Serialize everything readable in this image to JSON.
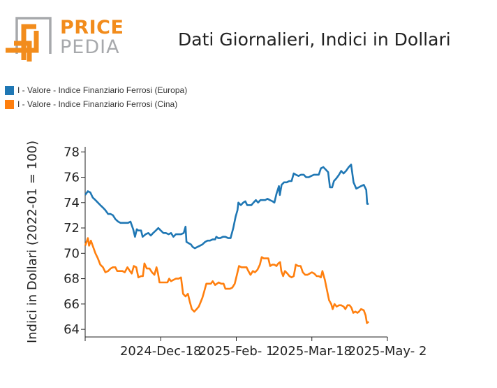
{
  "brand": {
    "line1": "PRICE",
    "line2": "PEDIA",
    "orange": "#f28c1c",
    "gray": "#a7a9ac"
  },
  "chart_data": {
    "type": "line",
    "title": "Dati Giornalieri, Indici in Dollari",
    "xlabel": "",
    "ylabel": "Indici in Dollari (2022-01 = 100)",
    "ylim": [
      63.4,
      78.4
    ],
    "yticks": [
      64,
      66,
      68,
      70,
      72,
      74,
      76,
      78
    ],
    "xlim": [
      0,
      100
    ],
    "xticks": [
      {
        "x": 25,
        "label": "2024-Dec-18"
      },
      {
        "x": 50,
        "label": "2025-Feb- 1"
      },
      {
        "x": 75,
        "label": "2025-Mar-18"
      },
      {
        "x": 100,
        "label": "2025-May- 2"
      }
    ],
    "legend_position": "top-left",
    "series": [
      {
        "name": "I - Valore - Indice Finanziario Ferrosi (Europa)",
        "color": "#1f77b4",
        "points": [
          [
            0,
            74.6
          ],
          [
            0.9,
            74.9
          ],
          [
            1.7,
            74.8
          ],
          [
            2.5,
            74.4
          ],
          [
            3.4,
            74.2
          ],
          [
            4.2,
            74
          ],
          [
            5,
            73.8
          ],
          [
            5.9,
            73.6
          ],
          [
            6.7,
            73.4
          ],
          [
            7.6,
            73.1
          ],
          [
            8.4,
            73.1
          ],
          [
            9.2,
            73
          ],
          [
            10,
            72.7
          ],
          [
            10.9,
            72.5
          ],
          [
            11.7,
            72.4
          ],
          [
            12.6,
            72.4
          ],
          [
            13.4,
            72.4
          ],
          [
            14.2,
            72.4
          ],
          [
            15,
            72.5
          ],
          [
            15.9,
            71.9
          ],
          [
            16.5,
            71.3
          ],
          [
            17.1,
            71.9
          ],
          [
            17.6,
            71.8
          ],
          [
            18.5,
            71.8
          ],
          [
            19,
            71.3
          ],
          [
            20,
            71.5
          ],
          [
            20.9,
            71.6
          ],
          [
            21.7,
            71.4
          ],
          [
            22.5,
            71.6
          ],
          [
            23.4,
            71.8
          ],
          [
            24.2,
            72
          ],
          [
            25,
            71.8
          ],
          [
            25.9,
            71.6
          ],
          [
            26.7,
            71.6
          ],
          [
            27.6,
            71.5
          ],
          [
            28.4,
            71.6
          ],
          [
            29.2,
            71.3
          ],
          [
            30,
            71.5
          ],
          [
            30.9,
            71.5
          ],
          [
            31.7,
            71.5
          ],
          [
            32.6,
            71.6
          ],
          [
            33.2,
            72.1
          ],
          [
            33.5,
            70.9
          ],
          [
            34.2,
            70.8
          ],
          [
            35,
            70.7
          ],
          [
            35.6,
            70.5
          ],
          [
            36.3,
            70.4
          ],
          [
            37.1,
            70.5
          ],
          [
            38,
            70.6
          ],
          [
            38.8,
            70.7
          ],
          [
            39.7,
            70.9
          ],
          [
            40.5,
            71
          ],
          [
            41.3,
            71
          ],
          [
            42.2,
            71.1
          ],
          [
            43,
            71.1
          ],
          [
            43.4,
            71.3
          ],
          [
            44,
            71.2
          ],
          [
            44.7,
            71.2
          ],
          [
            45.6,
            71.3
          ],
          [
            46.4,
            71.3
          ],
          [
            47.3,
            71.2
          ],
          [
            48.1,
            71.2
          ],
          [
            49,
            72
          ],
          [
            49.8,
            72.9
          ],
          [
            50.4,
            73.4
          ],
          [
            50.7,
            74
          ],
          [
            51.5,
            73.8
          ],
          [
            52.3,
            74
          ],
          [
            53,
            74.1
          ],
          [
            53.6,
            73.8
          ],
          [
            54.3,
            73.8
          ],
          [
            55,
            73.8
          ],
          [
            55.7,
            74
          ],
          [
            56.5,
            74.2
          ],
          [
            57.2,
            74
          ],
          [
            58,
            74.2
          ],
          [
            58.7,
            74.2
          ],
          [
            59.6,
            74.2
          ],
          [
            60.3,
            74.3
          ],
          [
            61.1,
            74.2
          ],
          [
            62,
            74.1
          ],
          [
            62.6,
            74
          ],
          [
            63.3,
            74.7
          ],
          [
            64.1,
            75.3
          ],
          [
            64.4,
            74.6
          ],
          [
            65,
            75.4
          ],
          [
            65.8,
            75.6
          ],
          [
            66.7,
            75.6
          ],
          [
            67.5,
            75.7
          ],
          [
            68.3,
            75.7
          ],
          [
            69,
            76.3
          ],
          [
            69.7,
            76.2
          ],
          [
            70.6,
            76.1
          ],
          [
            71.4,
            76.2
          ],
          [
            72.3,
            76.2
          ],
          [
            73.1,
            76
          ],
          [
            74,
            76
          ],
          [
            74.8,
            76.1
          ],
          [
            75.7,
            76.2
          ],
          [
            76.5,
            76.2
          ],
          [
            77.3,
            76.2
          ],
          [
            78,
            76.7
          ],
          [
            78.8,
            76.8
          ],
          [
            79.6,
            76.6
          ],
          [
            80.4,
            76.4
          ],
          [
            81,
            75.2
          ],
          [
            81.7,
            75.2
          ],
          [
            82.3,
            75.7
          ],
          [
            83.1,
            75.9
          ],
          [
            84,
            76.2
          ],
          [
            84.7,
            76.5
          ],
          [
            85.5,
            76.3
          ],
          [
            86.3,
            76.5
          ],
          [
            87.2,
            76.8
          ],
          [
            88,
            77
          ],
          [
            88.8,
            75.6
          ],
          [
            89.7,
            75.1
          ],
          [
            90.5,
            75.2
          ],
          [
            91.3,
            75.3
          ],
          [
            92.2,
            75.4
          ],
          [
            93,
            75
          ],
          [
            93.3,
            73.9
          ],
          [
            93.8,
            73.9
          ]
        ]
      },
      {
        "name": "I - Valore - Indice Finanziario Ferrosi (Cina)",
        "color": "#ff7f0e",
        "points": [
          [
            0,
            70.6
          ],
          [
            0.9,
            71.2
          ],
          [
            1.3,
            70.6
          ],
          [
            1.9,
            71
          ],
          [
            2.5,
            70.6
          ],
          [
            3.4,
            70
          ],
          [
            4.2,
            69.6
          ],
          [
            5,
            69.1
          ],
          [
            5.9,
            68.9
          ],
          [
            6.7,
            68.5
          ],
          [
            7.6,
            68.6
          ],
          [
            8.4,
            68.8
          ],
          [
            9.2,
            68.9
          ],
          [
            10,
            68.9
          ],
          [
            10.6,
            68.6
          ],
          [
            11.5,
            68.6
          ],
          [
            12.3,
            68.6
          ],
          [
            13.1,
            68.5
          ],
          [
            14,
            68.9
          ],
          [
            14.8,
            68.6
          ],
          [
            15.4,
            68.4
          ],
          [
            16.1,
            69
          ],
          [
            16.9,
            68.9
          ],
          [
            17.6,
            68.1
          ],
          [
            18.5,
            68.2
          ],
          [
            19.1,
            68.2
          ],
          [
            19.6,
            69.2
          ],
          [
            20.4,
            68.8
          ],
          [
            21.3,
            68.8
          ],
          [
            22.1,
            68.5
          ],
          [
            22.9,
            68.3
          ],
          [
            23.6,
            68.9
          ],
          [
            24.1,
            68.4
          ],
          [
            24.6,
            67.7
          ],
          [
            25.5,
            67.7
          ],
          [
            26.3,
            67.7
          ],
          [
            27.2,
            67.7
          ],
          [
            27.8,
            68
          ],
          [
            28.4,
            67.8
          ],
          [
            29.2,
            67.9
          ],
          [
            30,
            68
          ],
          [
            30.9,
            68
          ],
          [
            31.7,
            68.1
          ],
          [
            32.4,
            66.8
          ],
          [
            33.2,
            66.6
          ],
          [
            34,
            66.8
          ],
          [
            34.6,
            66.2
          ],
          [
            35.3,
            65.6
          ],
          [
            36.1,
            65.4
          ],
          [
            36.9,
            65.6
          ],
          [
            37.6,
            65.8
          ],
          [
            38.3,
            66.2
          ],
          [
            38.8,
            66.5
          ],
          [
            39.4,
            67
          ],
          [
            40.1,
            67.6
          ],
          [
            40.9,
            67.6
          ],
          [
            41.6,
            67.6
          ],
          [
            42.2,
            67.8
          ],
          [
            43,
            67.5
          ],
          [
            43.6,
            67.6
          ],
          [
            44.2,
            67.7
          ],
          [
            45,
            67.6
          ],
          [
            45.8,
            67.6
          ],
          [
            46.4,
            67.2
          ],
          [
            47.1,
            67.2
          ],
          [
            47.9,
            67.2
          ],
          [
            48.7,
            67.3
          ],
          [
            49.5,
            67.6
          ],
          [
            50.2,
            68.3
          ],
          [
            50.9,
            69
          ],
          [
            51.7,
            68.9
          ],
          [
            52.6,
            68.9
          ],
          [
            53.4,
            68.9
          ],
          [
            54,
            68.6
          ],
          [
            54.7,
            68.3
          ],
          [
            55.5,
            68.6
          ],
          [
            56.2,
            68.5
          ],
          [
            57,
            68.7
          ],
          [
            57.8,
            69.1
          ],
          [
            58.4,
            69.7
          ],
          [
            59.1,
            69.6
          ],
          [
            59.9,
            69.6
          ],
          [
            60.6,
            69.6
          ],
          [
            61.2,
            69
          ],
          [
            61.9,
            69.1
          ],
          [
            62.6,
            69.1
          ],
          [
            63.3,
            69
          ],
          [
            63.9,
            69.2
          ],
          [
            64.5,
            69.3
          ],
          [
            64.9,
            68.6
          ],
          [
            65.5,
            68.2
          ],
          [
            66.1,
            68.6
          ],
          [
            66.9,
            68.4
          ],
          [
            67.6,
            68.2
          ],
          [
            68.3,
            68.1
          ],
          [
            69,
            68.2
          ],
          [
            69.7,
            69.1
          ],
          [
            70.5,
            69
          ],
          [
            71.3,
            69
          ],
          [
            72,
            68.5
          ],
          [
            72.8,
            68.3
          ],
          [
            73.5,
            68.3
          ],
          [
            74.3,
            68.4
          ],
          [
            75,
            68.5
          ],
          [
            75.8,
            68.4
          ],
          [
            76.6,
            68.2
          ],
          [
            77.3,
            68.2
          ],
          [
            78,
            68.1
          ],
          [
            78.5,
            68.6
          ],
          [
            79.3,
            67.9
          ],
          [
            80,
            67.1
          ],
          [
            80.7,
            66.3
          ],
          [
            81.4,
            66
          ],
          [
            81.9,
            65.6
          ],
          [
            82.5,
            66
          ],
          [
            83.2,
            65.8
          ],
          [
            84,
            65.9
          ],
          [
            84.7,
            65.9
          ],
          [
            85.5,
            65.8
          ],
          [
            86.1,
            65.6
          ],
          [
            86.8,
            65.9
          ],
          [
            87.5,
            65.9
          ],
          [
            88.1,
            65.7
          ],
          [
            88.7,
            65.3
          ],
          [
            89.4,
            65.4
          ],
          [
            90.1,
            65.3
          ],
          [
            90.6,
            65.4
          ],
          [
            91.3,
            65.6
          ],
          [
            92.2,
            65.5
          ],
          [
            92.8,
            65.1
          ],
          [
            93.2,
            64.5
          ],
          [
            93.8,
            64.6
          ]
        ]
      }
    ]
  }
}
